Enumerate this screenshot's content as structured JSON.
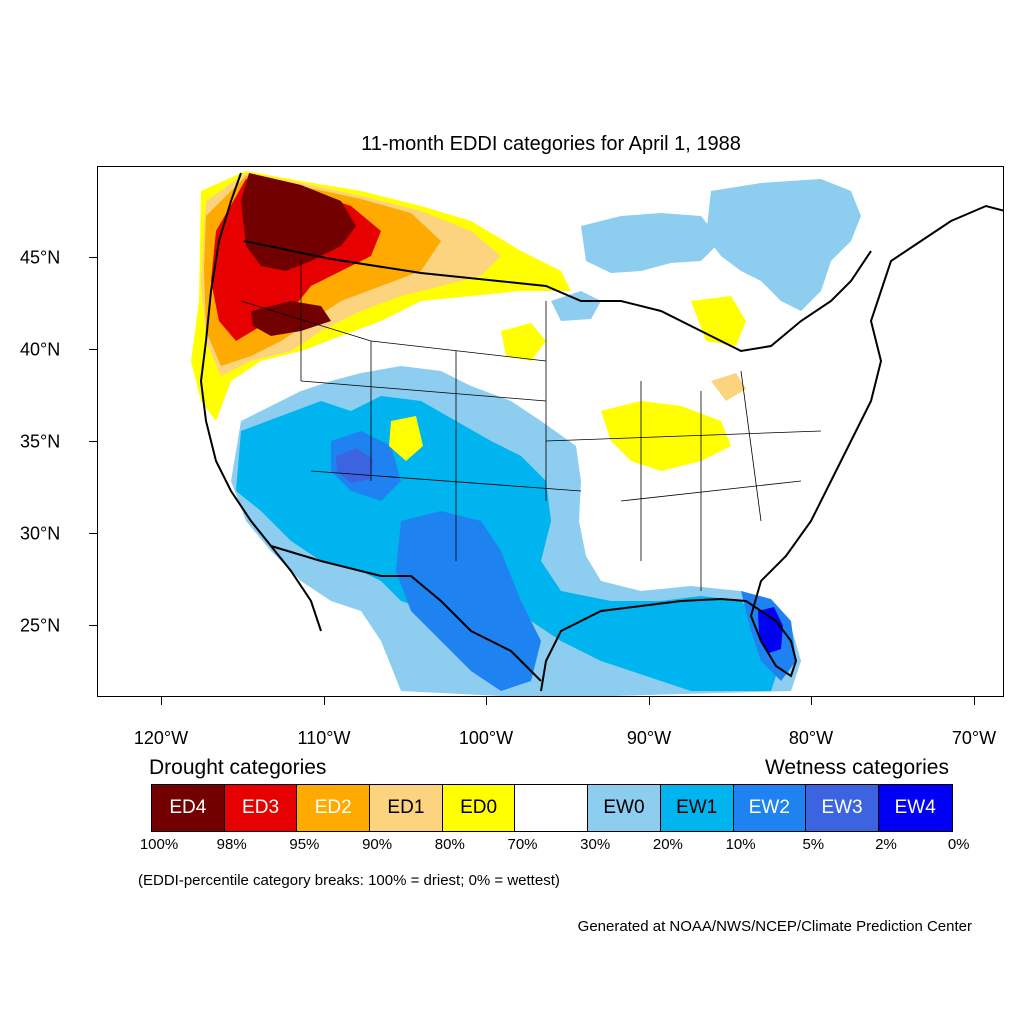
{
  "title": "11-month EDDI categories for April 1, 1988",
  "axes": {
    "lon_labels": [
      "120°W",
      "110°W",
      "100°W",
      "90°W",
      "80°W",
      "70°W"
    ],
    "lat_labels": [
      "45°N",
      "40°N",
      "35°N",
      "30°N",
      "25°N"
    ]
  },
  "legend": {
    "drought_heading": "Drought categories",
    "wetness_heading": "Wetness categories",
    "categories": [
      {
        "label": "ED4",
        "color": "#730000",
        "text_color": "#ffffff"
      },
      {
        "label": "ED3",
        "color": "#e60000",
        "text_color": "#ffffff"
      },
      {
        "label": "ED2",
        "color": "#ffaa00",
        "text_color": "#ffffff"
      },
      {
        "label": "ED1",
        "color": "#fcd37f",
        "text_color": "#000000"
      },
      {
        "label": "ED0",
        "color": "#ffff00",
        "text_color": "#000000"
      },
      {
        "label": "",
        "color": "#ffffff",
        "text_color": "#000000"
      },
      {
        "label": "EW0",
        "color": "#8ccdf0",
        "text_color": "#000000"
      },
      {
        "label": "EW1",
        "color": "#00b4f0",
        "text_color": "#000000"
      },
      {
        "label": "EW2",
        "color": "#1e82f0",
        "text_color": "#ffffff"
      },
      {
        "label": "EW3",
        "color": "#3c64e1",
        "text_color": "#ffffff"
      },
      {
        "label": "EW4",
        "color": "#0000f5",
        "text_color": "#ffffff"
      }
    ],
    "breaks": [
      "100%",
      "98%",
      "95%",
      "90%",
      "80%",
      "70%",
      "30%",
      "20%",
      "10%",
      "5%",
      "2%",
      "0%"
    ]
  },
  "note": "(EDDI-percentile category breaks: 100% = driest; 0% = wettest)",
  "credit": "Generated at NOAA/NWS/NCEP/Climate Prediction Center"
}
